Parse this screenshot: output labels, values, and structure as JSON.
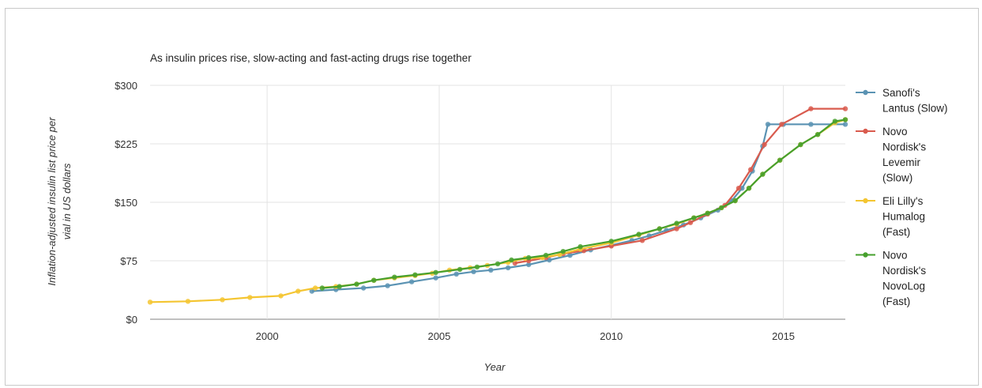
{
  "chart_data": {
    "type": "line",
    "title": "As insulin prices rise, slow-acting and fast-acting drugs rise together",
    "xlabel": "Year",
    "ylabel": "Inflation-adjusted insulin list price per vial in US dollars",
    "xlim": [
      1996.6,
      2016.8
    ],
    "ylim": [
      0,
      300
    ],
    "xticks": [
      2000,
      2005,
      2010,
      2015
    ],
    "yticks": [
      0,
      75,
      150,
      225,
      300
    ],
    "ytick_labels": [
      "$0",
      "$75",
      "$150",
      "$225",
      "$300"
    ],
    "grid": true,
    "legend_position": "right",
    "series": [
      {
        "name": "Sanofi's Lantus (Slow)",
        "legend_lines": [
          "Sanofi's",
          "Lantus (Slow)"
        ],
        "color": "#5b93b3",
        "points": [
          [
            2001.3,
            36
          ],
          [
            2002.0,
            38
          ],
          [
            2002.8,
            40
          ],
          [
            2003.5,
            43
          ],
          [
            2004.2,
            48
          ],
          [
            2004.9,
            53
          ],
          [
            2005.5,
            58
          ],
          [
            2006.0,
            61
          ],
          [
            2006.5,
            63
          ],
          [
            2007.0,
            66
          ],
          [
            2007.6,
            70
          ],
          [
            2008.2,
            76
          ],
          [
            2008.8,
            82
          ],
          [
            2009.4,
            89
          ],
          [
            2010.0,
            95
          ],
          [
            2010.6,
            101
          ],
          [
            2011.1,
            107
          ],
          [
            2011.6,
            114
          ],
          [
            2012.1,
            121
          ],
          [
            2012.6,
            130
          ],
          [
            2013.1,
            140
          ],
          [
            2013.5,
            152
          ],
          [
            2013.8,
            168
          ],
          [
            2014.1,
            190
          ],
          [
            2014.4,
            222
          ],
          [
            2014.55,
            250
          ],
          [
            2015.0,
            250
          ],
          [
            2015.8,
            250
          ],
          [
            2016.8,
            250
          ]
        ]
      },
      {
        "name": "Novo Nordisk's Levemir (Slow)",
        "legend_lines": [
          "Novo",
          "Nordisk's",
          "Levemir",
          "(Slow)"
        ],
        "color": "#d95b4e",
        "points": [
          [
            2007.2,
            72
          ],
          [
            2007.6,
            75
          ],
          [
            2008.1,
            79
          ],
          [
            2008.6,
            84
          ],
          [
            2009.2,
            88
          ],
          [
            2010.0,
            94
          ],
          [
            2010.9,
            101
          ],
          [
            2011.9,
            116
          ],
          [
            2012.3,
            124
          ],
          [
            2012.8,
            135
          ],
          [
            2013.3,
            146
          ],
          [
            2013.7,
            168
          ],
          [
            2014.05,
            192
          ],
          [
            2014.45,
            224
          ],
          [
            2014.95,
            250
          ],
          [
            2015.8,
            270
          ],
          [
            2016.8,
            270
          ]
        ]
      },
      {
        "name": "Eli Lilly's Humalog (Fast)",
        "legend_lines": [
          "Eli Lilly's",
          "Humalog",
          "(Fast)"
        ],
        "color": "#f4c531",
        "points": [
          [
            1996.6,
            22
          ],
          [
            1997.7,
            23
          ],
          [
            1998.7,
            25
          ],
          [
            1999.5,
            28
          ],
          [
            2000.4,
            30
          ],
          [
            2000.9,
            36
          ],
          [
            2001.4,
            40
          ],
          [
            2002.0,
            42
          ],
          [
            2002.6,
            45
          ],
          [
            2003.1,
            50
          ],
          [
            2003.7,
            53
          ],
          [
            2004.3,
            56
          ],
          [
            2004.8,
            59
          ],
          [
            2005.3,
            63
          ],
          [
            2005.9,
            66
          ],
          [
            2006.4,
            69
          ],
          [
            2007.0,
            73
          ],
          [
            2007.5,
            78
          ],
          [
            2008.0,
            79
          ],
          [
            2008.5,
            83
          ],
          [
            2009.1,
            90
          ],
          [
            2010.0,
            98
          ],
          [
            2010.8,
            108
          ],
          [
            2011.4,
            116
          ],
          [
            2011.9,
            122
          ],
          [
            2012.4,
            130
          ],
          [
            2012.8,
            136
          ],
          [
            2013.2,
            143
          ],
          [
            2013.6,
            152
          ],
          [
            2014.0,
            168
          ],
          [
            2014.4,
            186
          ],
          [
            2014.9,
            204
          ],
          [
            2015.5,
            224
          ],
          [
            2016.0,
            237
          ],
          [
            2016.5,
            252
          ],
          [
            2016.8,
            256
          ]
        ]
      },
      {
        "name": "Novo Nordisk's NovoLog (Fast)",
        "legend_lines": [
          "Novo",
          "Nordisk's",
          "NovoLog",
          "(Fast)"
        ],
        "color": "#46a02d",
        "points": [
          [
            2001.6,
            40
          ],
          [
            2002.1,
            42
          ],
          [
            2002.6,
            45
          ],
          [
            2003.1,
            50
          ],
          [
            2003.7,
            54
          ],
          [
            2004.3,
            57
          ],
          [
            2004.9,
            60
          ],
          [
            2005.6,
            64
          ],
          [
            2006.1,
            67
          ],
          [
            2006.7,
            71
          ],
          [
            2007.1,
            76
          ],
          [
            2007.6,
            79
          ],
          [
            2008.1,
            82
          ],
          [
            2008.6,
            87
          ],
          [
            2009.1,
            93
          ],
          [
            2010.0,
            100
          ],
          [
            2010.8,
            109
          ],
          [
            2011.4,
            116
          ],
          [
            2011.9,
            123
          ],
          [
            2012.4,
            130
          ],
          [
            2012.8,
            136
          ],
          [
            2013.2,
            143
          ],
          [
            2013.6,
            152
          ],
          [
            2014.0,
            168
          ],
          [
            2014.4,
            186
          ],
          [
            2014.9,
            204
          ],
          [
            2015.5,
            224
          ],
          [
            2016.0,
            237
          ],
          [
            2016.5,
            254
          ],
          [
            2016.8,
            256
          ]
        ]
      }
    ]
  }
}
